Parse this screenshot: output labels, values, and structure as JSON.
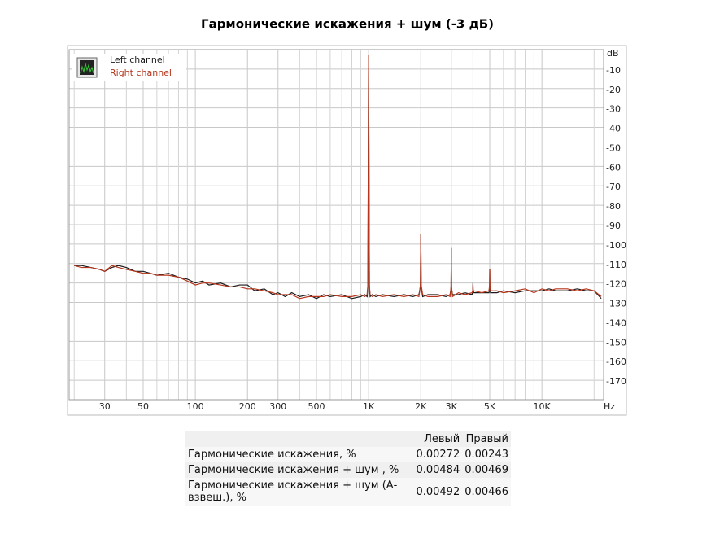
{
  "chart_data": {
    "type": "line",
    "title": "Гармонические искажения + шум (-3 дБ)",
    "x_unit": "Hz",
    "y_unit": "dB",
    "xscale": "log",
    "xlim": [
      18.7,
      22700
    ],
    "xticks": [
      30,
      50,
      100,
      200,
      300,
      500,
      {
        "value": 1000,
        "label": "1K"
      },
      {
        "value": 2000,
        "label": "2K"
      },
      {
        "value": 3000,
        "label": "3K"
      },
      {
        "value": 5000,
        "label": "5K"
      },
      {
        "value": 10000,
        "label": "10K"
      }
    ],
    "xminor_ticks": [
      20,
      40,
      60,
      70,
      80,
      90,
      400,
      600,
      700,
      800,
      900,
      4000,
      6000,
      7000,
      8000,
      9000,
      20000
    ],
    "ylim": [
      -180,
      0
    ],
    "yticks": [
      -10,
      -20,
      -30,
      -40,
      -50,
      -60,
      -70,
      -80,
      -90,
      -100,
      -110,
      -120,
      -130,
      -140,
      -150,
      -160,
      -170
    ],
    "grid": true,
    "legend": "upper left",
    "x": [
      20,
      22,
      25,
      28,
      30,
      33,
      36,
      40,
      45,
      50,
      55,
      60,
      70,
      80,
      90,
      100,
      110,
      120,
      140,
      160,
      180,
      200,
      220,
      250,
      280,
      300,
      330,
      360,
      400,
      450,
      500,
      550,
      600,
      700,
      800,
      900,
      950,
      980,
      990,
      1000,
      1010,
      1020,
      1050,
      1100,
      1200,
      1400,
      1600,
      1800,
      1950,
      1990,
      2000,
      2010,
      2050,
      2200,
      2500,
      2800,
      2950,
      2990,
      3000,
      3010,
      3050,
      3300,
      3600,
      3950,
      3990,
      4000,
      4010,
      4050,
      4500,
      4950,
      4990,
      5000,
      5010,
      5050,
      5500,
      6000,
      7000,
      8000,
      9000,
      10000,
      11000,
      12000,
      14000,
      16000,
      18000,
      20000,
      22000
    ],
    "series": [
      {
        "name": "Left channel",
        "color": "#1a1a1a",
        "values": [
          -111,
          -111,
          -112,
          -113,
          -114,
          -112,
          -111,
          -112,
          -114,
          -114,
          -115,
          -116,
          -115,
          -117,
          -118,
          -120,
          -119,
          -121,
          -120,
          -122,
          -121,
          -121,
          -124,
          -123,
          -126,
          -125,
          -127,
          -125,
          -127,
          -126,
          -128,
          -126,
          -127,
          -126,
          -128,
          -127,
          -126,
          -127,
          -122,
          -3,
          -122,
          -127,
          -126,
          -127,
          -126,
          -127,
          -126,
          -127,
          -126,
          -122,
          -95,
          -122,
          -127,
          -126,
          -126,
          -127,
          -126,
          -123,
          -102,
          -123,
          -126,
          -126,
          -125,
          -126,
          -124,
          -120,
          -124,
          -125,
          -125,
          -125,
          -122,
          -113,
          -122,
          -125,
          -125,
          -124,
          -125,
          -124,
          -124,
          -124,
          -123,
          -124,
          -124,
          -123,
          -124,
          -124,
          -128
        ]
      },
      {
        "name": "Right channel",
        "color": "#b5361c",
        "values": [
          -111,
          -112,
          -112,
          -113,
          -114,
          -111,
          -112,
          -113,
          -114,
          -115,
          -115,
          -116,
          -116,
          -117,
          -119,
          -121,
          -120,
          -120,
          -121,
          -122,
          -122,
          -123,
          -123,
          -124,
          -125,
          -126,
          -126,
          -126,
          -128,
          -127,
          -127,
          -127,
          -126,
          -127,
          -127,
          -126,
          -127,
          -126,
          -121,
          -3,
          -121,
          -126,
          -127,
          -126,
          -127,
          -126,
          -127,
          -126,
          -127,
          -121,
          -95,
          -121,
          -126,
          -127,
          -127,
          -126,
          -127,
          -122,
          -102,
          -122,
          -127,
          -125,
          -126,
          -125,
          -124,
          -121,
          -124,
          -124,
          -125,
          -124,
          -121,
          -113,
          -121,
          -124,
          -124,
          -125,
          -124,
          -123,
          -125,
          -123,
          -124,
          -123,
          -123,
          -124,
          -123,
          -124,
          -127
        ]
      }
    ]
  },
  "table": {
    "header": [
      "Левый",
      "Правый"
    ],
    "rows": [
      [
        "Гармонические искажения, %",
        0.00272,
        0.00243
      ],
      [
        "Гармонические искажения + шум , %",
        0.00484,
        0.00469
      ],
      [
        "Гармонические искажения + шум (А-взвеш.), %",
        0.00492,
        0.00466
      ]
    ]
  }
}
